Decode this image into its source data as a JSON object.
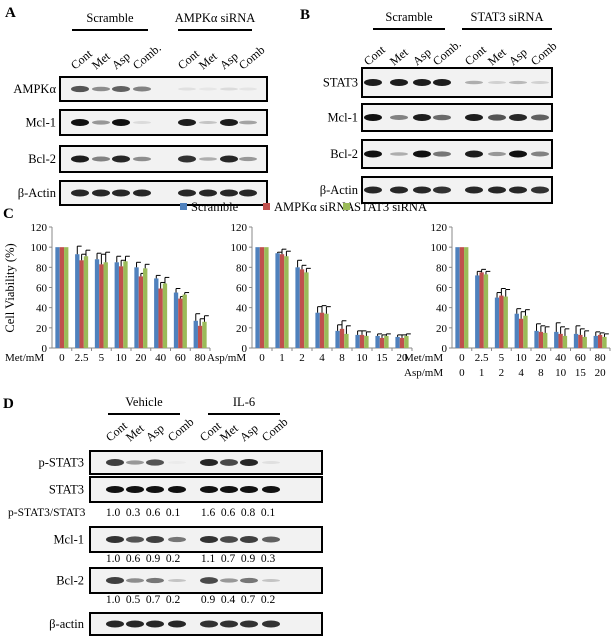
{
  "panels": {
    "A": {
      "label": "A",
      "groups": [
        "Scramble",
        "AMPKα siRNA"
      ],
      "lanes": [
        "Cont",
        "Met",
        "Asp",
        "Comb.",
        "Cont",
        "Met",
        "Asp",
        "Comb"
      ],
      "rows": [
        {
          "label": "AMPKα",
          "band_intensity": [
            0.7,
            0.45,
            0.65,
            0.5,
            0.08,
            0.05,
            0.1,
            0.06
          ]
        },
        {
          "label": "Mcl-1",
          "band_intensity": [
            1.0,
            0.4,
            1.0,
            0.1,
            0.95,
            0.2,
            0.95,
            0.35
          ]
        },
        {
          "label": "Bcl-2",
          "band_intensity": [
            0.95,
            0.5,
            0.9,
            0.45,
            0.85,
            0.3,
            0.9,
            0.4
          ]
        },
        {
          "label": "β-Actin",
          "band_intensity": [
            0.9,
            0.9,
            0.9,
            0.9,
            0.9,
            0.9,
            0.9,
            0.9
          ]
        }
      ]
    },
    "B": {
      "label": "B",
      "groups": [
        "Scramble",
        "STAT3 siRNA"
      ],
      "lanes": [
        "Cont",
        "Met",
        "Asp",
        "Comb.",
        "Cont",
        "Met",
        "Asp",
        "Comb"
      ],
      "rows": [
        {
          "label": "STAT3",
          "band_intensity": [
            0.95,
            0.95,
            0.95,
            0.95,
            0.3,
            0.15,
            0.25,
            0.15
          ]
        },
        {
          "label": "Mcl-1",
          "band_intensity": [
            1.0,
            0.5,
            0.95,
            0.6,
            0.95,
            0.7,
            0.9,
            0.65
          ]
        },
        {
          "label": "Bcl-2",
          "band_intensity": [
            1.0,
            0.3,
            1.0,
            0.55,
            0.95,
            0.4,
            1.0,
            0.5
          ]
        },
        {
          "label": "β-Actin",
          "band_intensity": [
            0.9,
            0.9,
            0.9,
            0.85,
            0.9,
            0.9,
            0.9,
            0.85
          ]
        }
      ]
    },
    "C": {
      "label": "C",
      "legend": [
        {
          "name": "Scramble",
          "color": "#4f81bd"
        },
        {
          "name": "AMPKα siRNA",
          "color": "#c0504d"
        },
        {
          "name": "STAT3 siRNA",
          "color": "#9bbb59"
        }
      ]
    },
    "D": {
      "label": "D",
      "groups": [
        "Vehicle",
        "IL-6"
      ],
      "lanes": [
        "Cont",
        "Met",
        "Asp",
        "Comb",
        "Cont",
        "Met",
        "Asp",
        "Comb"
      ],
      "rows": [
        {
          "label": "p-STAT3",
          "band_intensity": [
            0.8,
            0.4,
            0.7,
            0.03,
            0.9,
            0.75,
            0.9,
            0.08
          ]
        },
        {
          "label": "STAT3",
          "band_intensity": [
            1.0,
            1.0,
            1.0,
            1.0,
            1.0,
            1.0,
            1.0,
            1.0
          ]
        },
        {
          "label": "Mcl-1",
          "band_intensity": [
            0.85,
            0.7,
            0.8,
            0.55,
            0.85,
            0.75,
            0.8,
            0.65
          ]
        },
        {
          "label": "Bcl-2",
          "band_intensity": [
            0.8,
            0.45,
            0.55,
            0.2,
            0.75,
            0.4,
            0.55,
            0.2
          ]
        },
        {
          "label": "β-actin",
          "band_intensity": [
            0.9,
            0.9,
            0.9,
            0.9,
            0.85,
            0.85,
            0.85,
            0.85
          ]
        }
      ],
      "quantification": [
        {
          "label": "p-STAT3/STAT3",
          "values": [
            "1.0",
            "0.3",
            "0.6",
            "0.1",
            "1.6",
            "0.6",
            "0.8",
            "0.1"
          ]
        },
        {
          "label": "",
          "values": [
            "1.0",
            "0.6",
            "0.9",
            "0.2",
            "1.1",
            "0.7",
            "0.9",
            "0.3"
          ]
        },
        {
          "label": "",
          "values": [
            "1.0",
            "0.5",
            "0.7",
            "0.2",
            "0.9",
            "0.4",
            "0.7",
            "0.2"
          ]
        }
      ]
    }
  },
  "chart_data": [
    {
      "type": "bar",
      "ylabel": "Cell Viability (%)",
      "xlabel": "Met/mM",
      "ylim": [
        0,
        120
      ],
      "yticks": [
        0,
        20,
        40,
        60,
        80,
        100,
        120
      ],
      "categories": [
        "0",
        "2.5",
        "5",
        "10",
        "20",
        "40",
        "60",
        "80"
      ],
      "series": [
        {
          "name": "Scramble",
          "color": "#4f81bd",
          "values": [
            100,
            93,
            88,
            85,
            80,
            69,
            55,
            27
          ],
          "errors": [
            0,
            8,
            6,
            6,
            5,
            3,
            4,
            7
          ]
        },
        {
          "name": "AMPKα siRNA",
          "color": "#c0504d",
          "values": [
            100,
            87,
            83,
            81,
            71,
            59,
            49,
            22
          ],
          "errors": [
            0,
            6,
            10,
            6,
            3,
            6,
            2,
            7
          ]
        },
        {
          "name": "STAT3 siRNA",
          "color": "#9bbb59",
          "values": [
            100,
            91,
            85,
            86,
            79,
            64,
            53,
            26
          ],
          "errors": [
            0,
            6,
            10,
            5,
            4,
            6,
            2,
            6
          ]
        }
      ]
    },
    {
      "type": "bar",
      "xlabel": "Asp/mM",
      "ylim": [
        0,
        120
      ],
      "yticks": [
        0,
        20,
        40,
        60,
        80,
        100,
        120
      ],
      "categories": [
        "0",
        "1",
        "2",
        "4",
        "8",
        "10",
        "15",
        "20"
      ],
      "series": [
        {
          "name": "Scramble",
          "color": "#4f81bd",
          "values": [
            100,
            94,
            80,
            35,
            17,
            13,
            12,
            11
          ],
          "errors": [
            0,
            1,
            7,
            6,
            6,
            4,
            2,
            2
          ]
        },
        {
          "name": "AMPKα siRNA",
          "color": "#c0504d",
          "values": [
            100,
            93,
            78,
            35,
            19,
            13,
            10,
            10
          ],
          "errors": [
            0,
            5,
            4,
            7,
            8,
            4,
            3,
            3
          ]
        },
        {
          "name": "STAT3 siRNA",
          "color": "#9bbb59",
          "values": [
            100,
            91,
            75,
            34,
            14,
            12,
            12,
            12
          ],
          "errors": [
            0,
            5,
            4,
            7,
            8,
            4,
            2,
            2
          ]
        }
      ]
    },
    {
      "type": "bar",
      "xlabel": "Met/mM",
      "xlabel2": "Asp/mM",
      "ylim": [
        0,
        120
      ],
      "yticks": [
        0,
        20,
        40,
        60,
        80,
        100,
        120
      ],
      "categories": [
        "0",
        "2.5",
        "5",
        "10",
        "20",
        "40",
        "60",
        "80"
      ],
      "categories2": [
        "0",
        "1",
        "2",
        "4",
        "8",
        "10",
        "15",
        "20"
      ],
      "series": [
        {
          "name": "Scramble",
          "color": "#4f81bd",
          "values": [
            100,
            72,
            50,
            34,
            17,
            16,
            14,
            12
          ],
          "errors": [
            0,
            4,
            5,
            5,
            7,
            9,
            8,
            4
          ]
        },
        {
          "name": "AMPKα siRNA",
          "color": "#c0504d",
          "values": [
            100,
            75,
            52,
            29,
            16,
            14,
            13,
            13
          ],
          "errors": [
            0,
            3,
            7,
            7,
            6,
            7,
            6,
            2
          ]
        },
        {
          "name": "STAT3 siRNA",
          "color": "#9bbb59",
          "values": [
            100,
            73,
            51,
            32,
            15,
            12,
            11,
            11
          ],
          "errors": [
            0,
            3,
            7,
            6,
            6,
            7,
            6,
            3
          ]
        }
      ]
    }
  ]
}
